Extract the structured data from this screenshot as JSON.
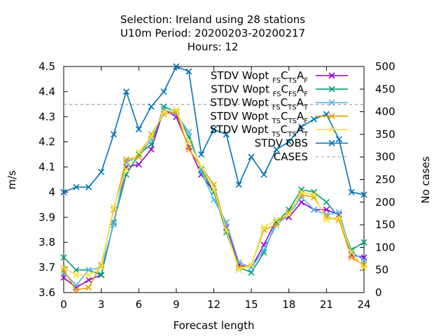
{
  "chart_data": {
    "type": "line",
    "title_lines": [
      "Selection: Ireland using    28 stations",
      "U10m   Period: 20200203-20200217",
      "Hours:  12"
    ],
    "xlabel": "Forecast length",
    "ylabel": "m/s",
    "y2label": "No cases",
    "xlim": [
      0,
      24
    ],
    "ylim": [
      3.6,
      4.5
    ],
    "y2lim": [
      0,
      500
    ],
    "xticks": [
      "0",
      "3",
      "6",
      "9",
      "12",
      "15",
      "18",
      "21",
      "24"
    ],
    "yticks": [
      "3.6",
      "3.7",
      "3.8",
      "3.9",
      "4",
      "4.1",
      "4.2",
      "4.3",
      "4.4",
      "4.5"
    ],
    "y2ticks": [
      "0",
      "50",
      "100",
      "150",
      "200",
      "250",
      "300",
      "350",
      "400",
      "450",
      "500"
    ],
    "x": [
      0,
      1,
      2,
      3,
      4,
      5,
      6,
      7,
      8,
      9,
      10,
      11,
      12,
      13,
      14,
      15,
      16,
      17,
      18,
      19,
      20,
      21,
      22,
      23,
      24
    ],
    "legend_position": "top-right",
    "series": [
      {
        "name": "STDV Wopt",
        "sub1": "FS",
        "mid1": "C",
        "sub2": "TS",
        "end": "A",
        "sub3": "F",
        "color": "#9400d3",
        "marker": "x",
        "values": [
          3.66,
          3.62,
          3.65,
          3.67,
          3.88,
          4.1,
          4.11,
          4.17,
          4.33,
          4.3,
          4.18,
          4.07,
          4.0,
          3.86,
          3.71,
          3.7,
          3.79,
          3.89,
          3.9,
          3.96,
          3.93,
          3.93,
          3.91,
          3.75,
          3.74
        ]
      },
      {
        "name": "STDV Wopt",
        "sub1": "FS",
        "mid1": "C",
        "sub2": "FS",
        "end": "A",
        "sub3": "F",
        "color": "#009e73",
        "marker": "x",
        "values": [
          3.74,
          3.69,
          3.69,
          3.67,
          3.88,
          4.07,
          4.15,
          4.19,
          4.34,
          4.32,
          4.22,
          4.09,
          4.0,
          3.84,
          3.7,
          3.68,
          3.76,
          3.88,
          3.93,
          4.01,
          4.0,
          3.96,
          3.9,
          3.77,
          3.8
        ]
      },
      {
        "name": "STDV Wopt",
        "sub1": "FS",
        "mid1": "C",
        "sub2": "TS",
        "end": "A",
        "sub3": "T",
        "color": "#56b4e9",
        "marker": "x",
        "values": [
          3.68,
          3.63,
          3.69,
          3.7,
          3.87,
          4.12,
          4.14,
          4.21,
          4.33,
          4.31,
          4.24,
          4.08,
          3.97,
          3.88,
          3.72,
          3.7,
          3.77,
          3.87,
          3.91,
          3.98,
          3.93,
          3.91,
          3.92,
          3.76,
          3.73
        ]
      },
      {
        "name": "STDV Wopt",
        "sub1": "TS",
        "mid1": "C",
        "sub2": "TS",
        "end": "A",
        "sub3": "F",
        "color": "#e69f00",
        "marker": "x",
        "values": [
          3.69,
          3.61,
          3.62,
          3.71,
          3.93,
          4.13,
          4.14,
          4.23,
          4.31,
          4.32,
          4.17,
          4.1,
          4.03,
          3.85,
          3.7,
          3.71,
          3.85,
          3.87,
          3.92,
          3.99,
          3.98,
          3.9,
          3.89,
          3.74,
          3.71
        ]
      },
      {
        "name": "STDV Wopt",
        "sub1": "TS",
        "mid1": "C",
        "sub2": "TS",
        "end": "A",
        "sub3": "T",
        "color": "#f0e442",
        "marker": "x",
        "values": [
          3.7,
          3.67,
          3.67,
          3.7,
          3.94,
          4.09,
          4.16,
          4.22,
          4.32,
          4.33,
          4.2,
          4.1,
          4.01,
          3.85,
          3.69,
          3.71,
          3.86,
          3.89,
          3.91,
          4.0,
          3.99,
          3.89,
          3.9,
          3.76,
          3.7
        ]
      },
      {
        "name": "STDV OBS",
        "color": "#0072b2",
        "marker": "x",
        "values": [
          4.0,
          4.02,
          4.02,
          4.08,
          4.23,
          4.4,
          4.25,
          4.34,
          4.4,
          4.5,
          4.48,
          4.15,
          4.25,
          4.23,
          4.03,
          4.14,
          4.07,
          4.17,
          4.2,
          4.26,
          4.29,
          4.31,
          4.21,
          4.0,
          3.99
        ]
      }
    ],
    "cases": {
      "name": "CASES",
      "axis": "y2",
      "value": 416,
      "color": "#a0a0a0",
      "dashed": true
    }
  }
}
